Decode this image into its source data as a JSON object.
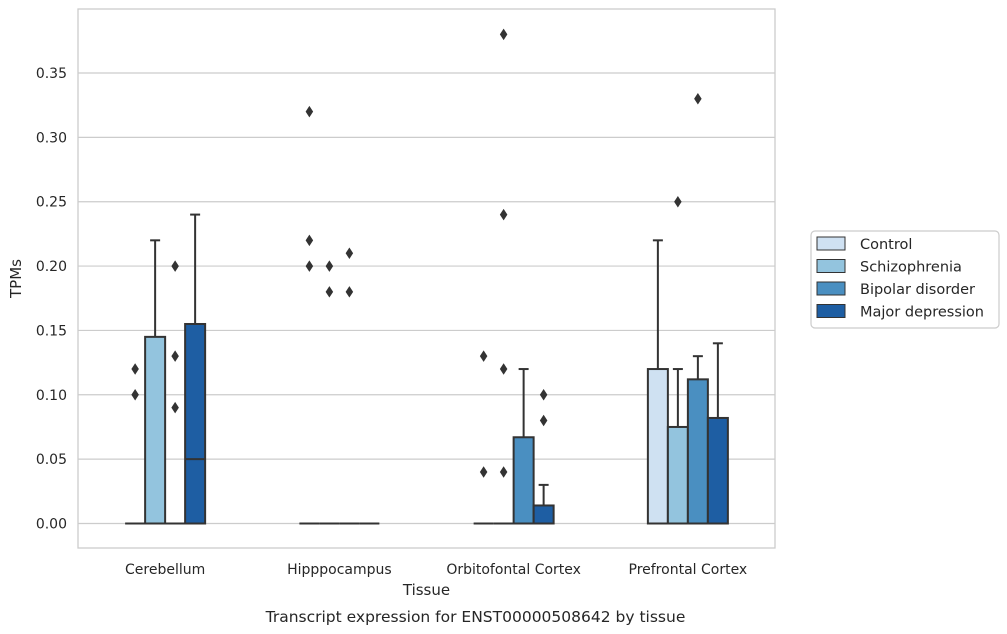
{
  "chart_data": {
    "type": "box",
    "title": "",
    "caption": "Transcript expression for ENST00000508642 by tissue",
    "xlabel": "Tissue",
    "ylabel": "TPMs",
    "ylim": [
      -0.018,
      0.397
    ],
    "yticks": [
      0.0,
      0.05,
      0.1,
      0.15,
      0.2,
      0.25,
      0.3,
      0.35
    ],
    "ytick_labels": [
      "0.00",
      "0.05",
      "0.10",
      "0.15",
      "0.20",
      "0.25",
      "0.30",
      "0.35"
    ],
    "grid": "horizontal",
    "legend_position": "right",
    "categories": [
      "Cerebellum",
      "Hipppocampus",
      "Orbitofontal Cortex",
      "Prefrontal Cortex"
    ],
    "series": [
      {
        "name": "Control",
        "color": "#cfe1f2",
        "boxes": [
          {
            "q1": 0,
            "median": 0,
            "q3": 0,
            "whislo": 0,
            "whishi": 0,
            "fliers": []
          },
          {
            "q1": 0,
            "median": 0,
            "q3": 0,
            "whislo": 0,
            "whishi": 0,
            "fliers": [
              0.2,
              0.22,
              0.32
            ]
          },
          {
            "q1": 0,
            "median": 0,
            "q3": 0,
            "whislo": 0,
            "whishi": 0,
            "fliers": [
              0.04,
              0.13
            ]
          },
          {
            "q1": 0,
            "median": 0,
            "q3": 0.12,
            "whislo": 0,
            "whishi": 0.22,
            "fliers": []
          }
        ]
      },
      {
        "name": "Schizophrenia",
        "color": "#93c4de",
        "boxes": [
          {
            "q1": 0,
            "median": 0,
            "q3": 0.145,
            "whislo": 0,
            "whishi": 0.22,
            "fliers": []
          },
          {
            "q1": 0,
            "median": 0,
            "q3": 0,
            "whislo": 0,
            "whishi": 0,
            "fliers": [
              0.18,
              0.2
            ]
          },
          {
            "q1": 0,
            "median": 0,
            "q3": 0,
            "whislo": 0,
            "whishi": 0,
            "fliers": [
              0.04,
              0.12,
              0.24,
              0.38
            ]
          },
          {
            "q1": 0,
            "median": 0,
            "q3": 0.075,
            "whislo": 0,
            "whishi": 0.12,
            "fliers": [
              0.25
            ]
          }
        ]
      },
      {
        "name": "Bipolar disorder",
        "color": "#4a8fc1",
        "boxes": [
          {
            "q1": 0,
            "median": 0,
            "q3": 0,
            "whislo": 0,
            "whishi": 0,
            "fliers": []
          },
          {
            "q1": 0,
            "median": 0,
            "q3": 0,
            "whislo": 0,
            "whishi": 0,
            "fliers": [
              0.18,
              0.21
            ]
          },
          {
            "q1": 0,
            "median": 0,
            "q3": 0.067,
            "whislo": 0,
            "whishi": 0.12,
            "fliers": []
          },
          {
            "q1": 0,
            "median": 0,
            "q3": 0.112,
            "whislo": 0,
            "whishi": 0.13,
            "fliers": [
              0.33
            ]
          }
        ]
      },
      {
        "name": "Major depression",
        "color": "#1e5ea3",
        "boxes": [
          {
            "q1": 0,
            "median": 0.05,
            "q3": 0.155,
            "whislo": 0,
            "whishi": 0.24,
            "fliers": []
          },
          {
            "q1": 0,
            "median": 0,
            "q3": 0,
            "whislo": 0,
            "whishi": 0,
            "fliers": []
          },
          {
            "q1": 0,
            "median": 0,
            "q3": 0.014,
            "whislo": 0,
            "whishi": 0.03,
            "fliers": [
              0.08,
              0.1
            ]
          },
          {
            "q1": 0,
            "median": 0,
            "q3": 0.082,
            "whislo": 0,
            "whishi": 0.14,
            "fliers": []
          }
        ]
      }
    ],
    "extra_fliers": [
      {
        "category": 0,
        "series": 0,
        "values": [
          0.1,
          0.12
        ]
      },
      {
        "category": 0,
        "series": 2,
        "values": [
          0.09,
          0.13,
          0.2
        ]
      }
    ]
  }
}
